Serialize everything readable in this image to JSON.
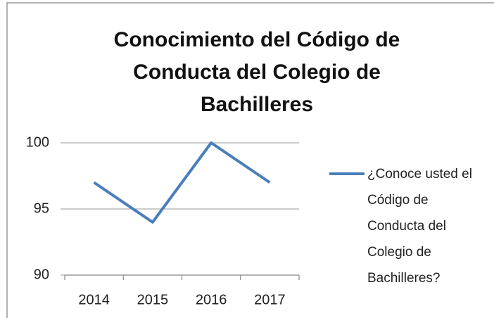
{
  "chart_data": {
    "type": "line",
    "title": "Conocimiento del Código de Conducta del Colegio de Bachilleres",
    "categories": [
      "2014",
      "2015",
      "2016",
      "2017"
    ],
    "series": [
      {
        "name": "¿Conoce usted el Código de Conducta del Colegio de Bachilleres?",
        "color": "#4a7ebb",
        "values": [
          97,
          94,
          100,
          97
        ]
      }
    ],
    "ylim": [
      90,
      100
    ],
    "yticks": [
      90,
      95,
      100
    ],
    "grid": true,
    "legend": "right"
  }
}
